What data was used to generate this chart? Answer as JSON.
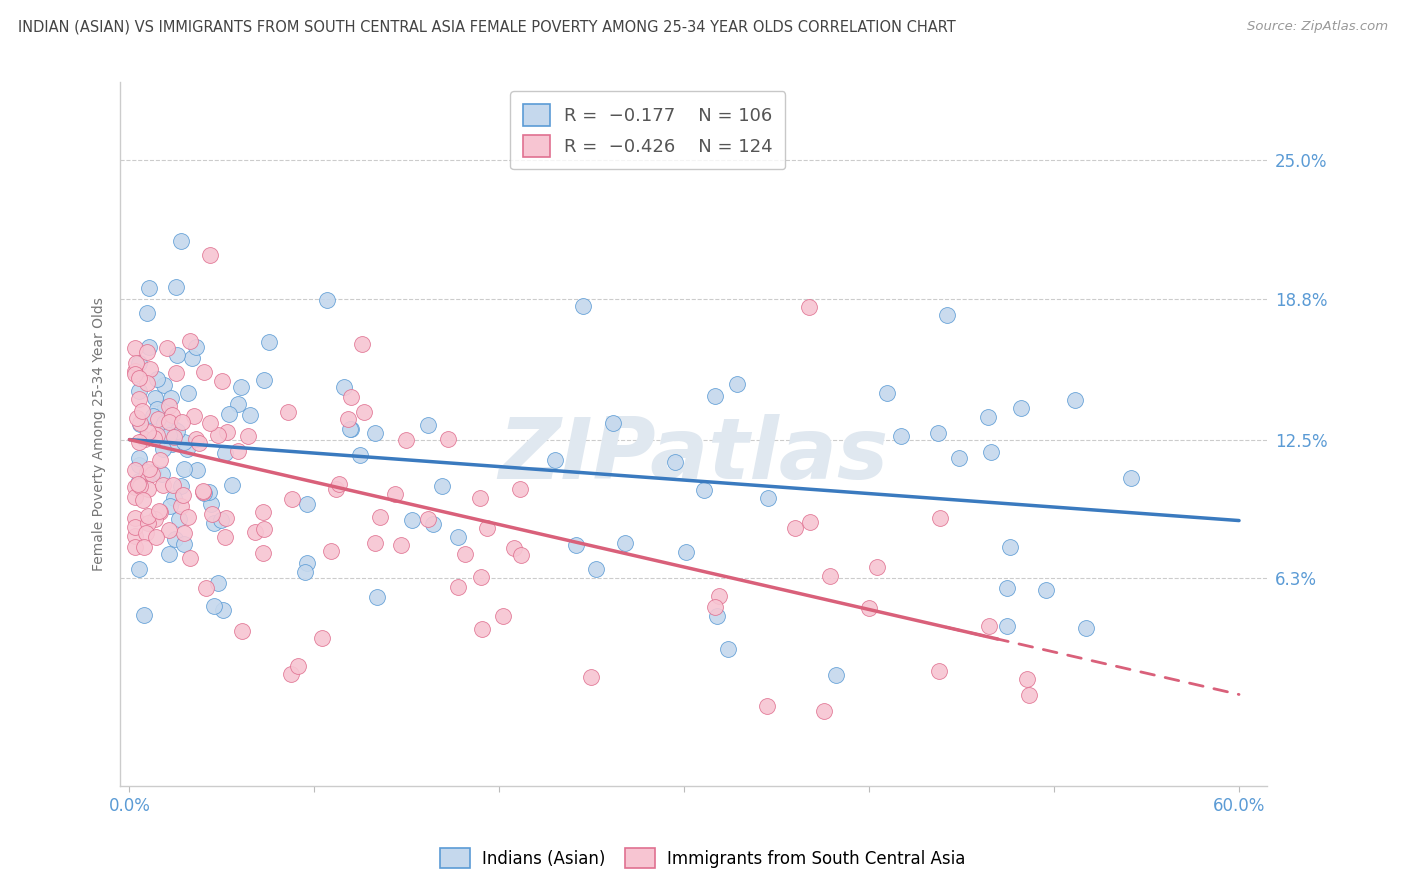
{
  "title": "INDIAN (ASIAN) VS IMMIGRANTS FROM SOUTH CENTRAL ASIA FEMALE POVERTY AMONG 25-34 YEAR OLDS CORRELATION CHART",
  "source": "Source: ZipAtlas.com",
  "ylabel": "Female Poverty Among 25-34 Year Olds",
  "xlim": [
    -0.005,
    0.615
  ],
  "ylim": [
    -0.03,
    0.285
  ],
  "ytick_vals": [
    0.063,
    0.125,
    0.188,
    0.25
  ],
  "ytick_labels": [
    "6.3%",
    "12.5%",
    "18.8%",
    "25.0%"
  ],
  "xtick_vals": [
    0.0,
    0.1,
    0.2,
    0.3,
    0.4,
    0.5,
    0.6
  ],
  "xtick_labels": [
    "0.0%",
    "",
    "",
    "",
    "",
    "",
    "60.0%"
  ],
  "series1_face_color": "#c5d8ed",
  "series1_edge_color": "#5b9bd5",
  "series2_face_color": "#f7c5d2",
  "series2_edge_color": "#e07090",
  "trendline1_color": "#3a7abf",
  "trendline2_color": "#d9607a",
  "R1": -0.177,
  "N1": 106,
  "R2": -0.426,
  "N2": 124,
  "watermark": "ZIPatlas",
  "background_color": "#ffffff",
  "grid_color": "#cccccc",
  "axis_label_color": "#5b9bd5",
  "title_color": "#444444",
  "source_color": "#999999",
  "legend_edge_color": "#bbbbbb"
}
